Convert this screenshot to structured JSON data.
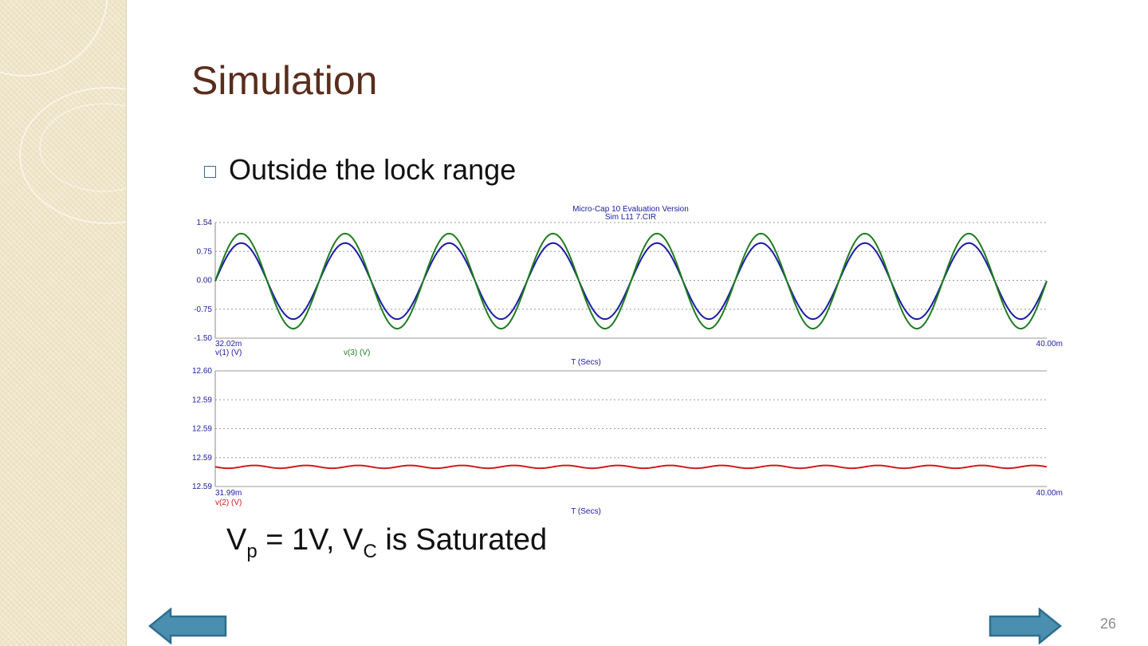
{
  "slide": {
    "title": "Simulation",
    "bullet": "Outside the lock range",
    "caption": {
      "v": "V",
      "p_sub": "p",
      "mid": " = 1V, V",
      "c_sub": "C",
      "tail": " is Saturated"
    },
    "page_number": "26"
  },
  "colors": {
    "title": "#5a2d1c",
    "bullet_box": "#3f6a82",
    "arrow_fill": "#4a8fb0",
    "arrow_stroke": "#2e6e8e",
    "sidebar": "#efe4c8"
  },
  "icons": {
    "bullet": "square-bullet-icon",
    "prev": "left-arrow-icon",
    "next": "right-arrow-icon"
  },
  "chart_data": [
    {
      "type": "line",
      "header": [
        "Micro-Cap 10 Evaluation Version",
        "Sim L11   7.CIR"
      ],
      "xlabel": "T (Secs)",
      "x_start_label": "32.02m",
      "x_end_label": "40.00m",
      "ylim": [
        -1.5,
        1.54
      ],
      "yticks": [
        "1.54",
        "0.75",
        "0.00",
        "-0.75",
        "-1.50"
      ],
      "grid": true,
      "series": [
        {
          "name": "v(1) (V)",
          "color": "#1c1ca8",
          "amplitude": 1.0,
          "cycles": 8,
          "phase_deg": 0
        },
        {
          "name": "v(3) (V)",
          "color": "#1e7d1e",
          "amplitude": 1.25,
          "cycles": 8,
          "phase_deg": 0
        }
      ]
    },
    {
      "type": "line",
      "xlabel": "T (Secs)",
      "x_start_label": "31.99m",
      "x_end_label": "40.00m",
      "yticks": [
        "12.60",
        "12.59",
        "12.59",
        "12.59",
        "12.59"
      ],
      "grid": true,
      "series": [
        {
          "name": "v(2) (V)",
          "color": "#d01a1a",
          "level_fraction": 0.17,
          "ripple_fraction": 0.008,
          "cycles": 16
        }
      ]
    }
  ]
}
